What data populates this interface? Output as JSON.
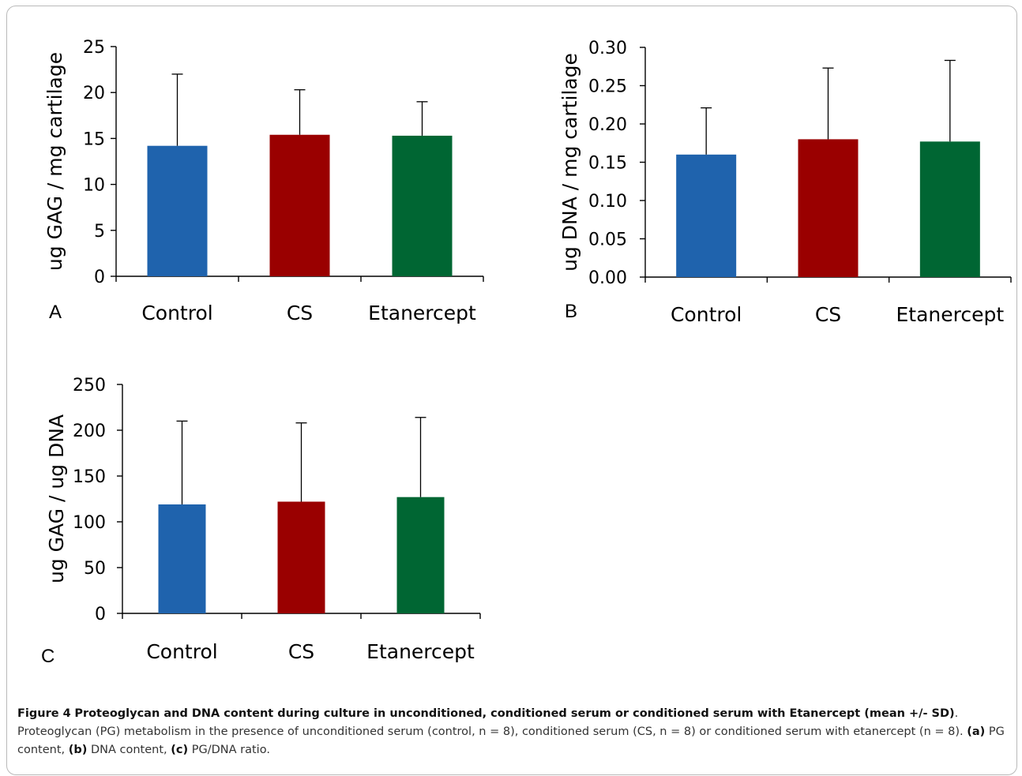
{
  "colors": {
    "control": "#1f63ad",
    "cs": "#9a0000",
    "etanercept": "#006633"
  },
  "chart_data": [
    {
      "type": "bar",
      "panel": "A",
      "categories": [
        "Control",
        "CS",
        "Etanercept"
      ],
      "values": [
        14.2,
        15.4,
        15.3
      ],
      "errors": [
        7.8,
        4.9,
        3.7
      ],
      "ylabel": "ug GAG / mg cartilage",
      "ylim": [
        0,
        25
      ],
      "yticks": [
        0,
        5,
        10,
        15,
        20,
        25
      ],
      "ytick_labels": [
        "0",
        "5",
        "10",
        "15",
        "20",
        "25"
      ]
    },
    {
      "type": "bar",
      "panel": "B",
      "categories": [
        "Control",
        "CS",
        "Etanercept"
      ],
      "values": [
        0.16,
        0.18,
        0.177
      ],
      "errors": [
        0.061,
        0.093,
        0.106
      ],
      "ylabel": "ug DNA / mg cartilage",
      "ylim": [
        0,
        0.3
      ],
      "yticks": [
        0,
        0.05,
        0.1,
        0.15,
        0.2,
        0.25,
        0.3
      ],
      "ytick_labels": [
        "0.00",
        "0.05",
        "0.10",
        "0.15",
        "0.20",
        "0.25",
        "0.30"
      ]
    },
    {
      "type": "bar",
      "panel": "C",
      "categories": [
        "Control",
        "CS",
        "Etanercept"
      ],
      "values": [
        119,
        122,
        127
      ],
      "errors": [
        91,
        86,
        87
      ],
      "ylabel": "ug GAG / ug DNA",
      "ylim": [
        0,
        250
      ],
      "yticks": [
        0,
        50,
        100,
        150,
        200,
        250
      ],
      "ytick_labels": [
        "0",
        "50",
        "100",
        "150",
        "200",
        "250"
      ]
    }
  ],
  "caption": {
    "label": "Figure 4",
    "title": "Proteoglycan and DNA content during culture in unconditioned, conditioned serum or conditioned serum with Etanercept (mean +/- SD)",
    "text_1": ". Proteoglycan (PG) metabolism in the presence of unconditioned serum (control, n = 8), conditioned serum (CS, n = 8) or conditioned serum with etanercept (n = 8). ",
    "a_label": "(a)",
    "a_text": " PG content, ",
    "b_label": "(b)",
    "b_text": " DNA content, ",
    "c_label": "(c)",
    "c_text": " PG/DNA ratio."
  }
}
